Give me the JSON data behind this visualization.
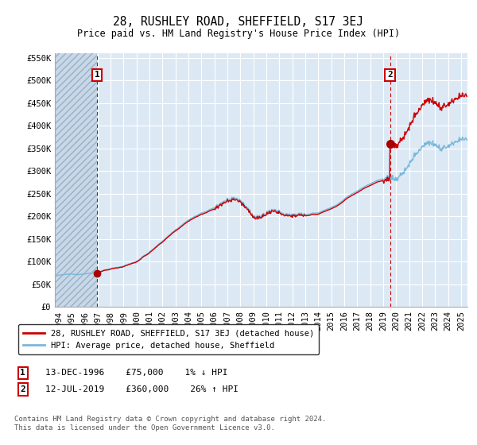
{
  "title": "28, RUSHLEY ROAD, SHEFFIELD, S17 3EJ",
  "subtitle": "Price paid vs. HM Land Registry's House Price Index (HPI)",
  "ylim": [
    0,
    560000
  ],
  "xlim_start": 1993.7,
  "xlim_end": 2025.5,
  "yticks": [
    0,
    50000,
    100000,
    150000,
    200000,
    250000,
    300000,
    350000,
    400000,
    450000,
    500000,
    550000
  ],
  "ytick_labels": [
    "£0",
    "£50K",
    "£100K",
    "£150K",
    "£200K",
    "£250K",
    "£300K",
    "£350K",
    "£400K",
    "£450K",
    "£500K",
    "£550K"
  ],
  "sale1_year": 1996.95,
  "sale1_price": 75000,
  "sale1_label": "1",
  "sale2_year": 2019.53,
  "sale2_price": 360000,
  "sale2_label": "2",
  "hpi_line_color": "#7ab8d9",
  "price_line_color": "#cc0000",
  "sale_marker_color": "#aa0000",
  "vline_color": "#cc0000",
  "bg_color": "#dce9f5",
  "hatch_bg_color": "#c8d8e8",
  "grid_color": "#ffffff",
  "legend_label1": "28, RUSHLEY ROAD, SHEFFIELD, S17 3EJ (detached house)",
  "legend_label2": "HPI: Average price, detached house, Sheffield",
  "sale1_date_str": "13-DEC-1996",
  "sale1_price_str": "£75,000",
  "sale1_hpi_str": "1% ↓ HPI",
  "sale2_date_str": "12-JUL-2019",
  "sale2_price_str": "£360,000",
  "sale2_hpi_str": "26% ↑ HPI",
  "footnote": "Contains HM Land Registry data © Crown copyright and database right 2024.\nThis data is licensed under the Open Government Licence v3.0.",
  "xtick_years": [
    1994,
    1995,
    1996,
    1997,
    1998,
    1999,
    2000,
    2001,
    2002,
    2003,
    2004,
    2005,
    2006,
    2007,
    2008,
    2009,
    2010,
    2011,
    2012,
    2013,
    2014,
    2015,
    2016,
    2017,
    2018,
    2019,
    2020,
    2021,
    2022,
    2023,
    2024,
    2025
  ]
}
